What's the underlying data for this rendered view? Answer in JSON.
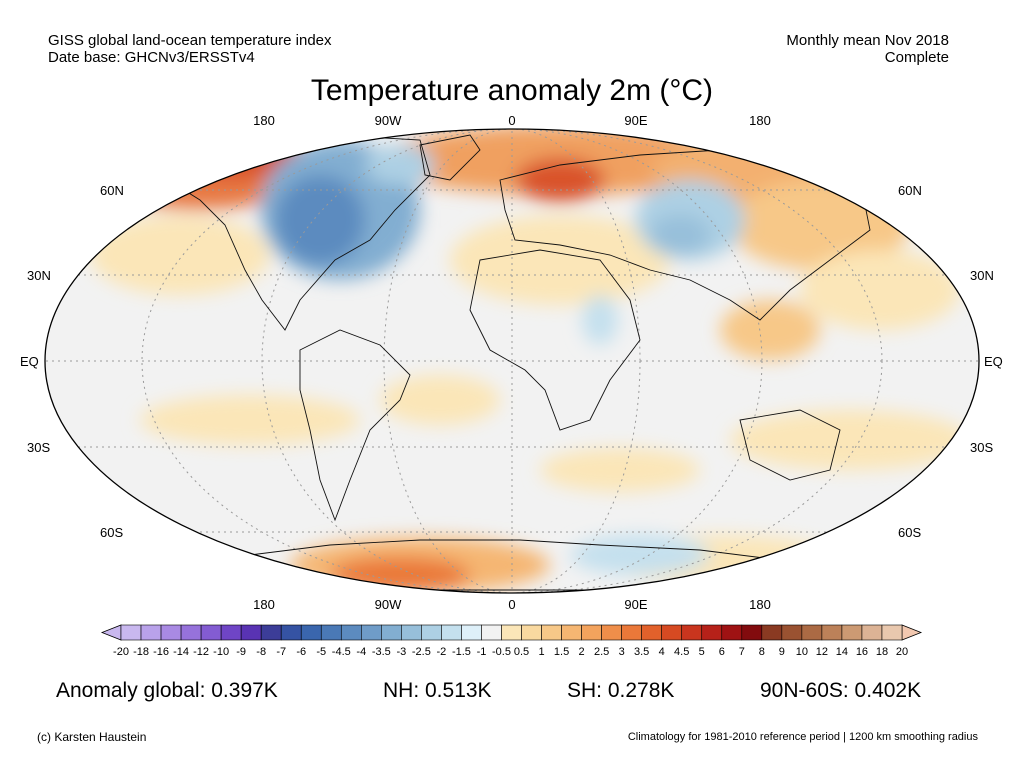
{
  "header": {
    "left_line1": "GISS global land-ocean temperature index",
    "left_line2": "Date base: GHCNv3/ERSSTv4",
    "right_line1": "Monthly mean Nov 2018",
    "right_line2": "Complete"
  },
  "title": "Temperature anomaly 2m (°C)",
  "lon_labels": [
    "180",
    "90W",
    "0",
    "90E",
    "180"
  ],
  "lat_labels": [
    "60N",
    "30N",
    "EQ",
    "30S",
    "60S"
  ],
  "colorbar": {
    "ticks": [
      "-20",
      "-18",
      "-16",
      "-14",
      "-12",
      "-10",
      "-9",
      "-8",
      "-7",
      "-6",
      "-5",
      "-4.5",
      "-4",
      "-3.5",
      "-3",
      "-2.5",
      "-2",
      "-1.5",
      "-1",
      "-0.5",
      "0.5",
      "1",
      "1.5",
      "2",
      "2.5",
      "3",
      "3.5",
      "4",
      "4.5",
      "5",
      "6",
      "7",
      "8",
      "9",
      "10",
      "12",
      "14",
      "16",
      "18",
      "20"
    ],
    "colors": [
      "#c9b8ef",
      "#b9a2ea",
      "#a98ae3",
      "#9672db",
      "#835cd2",
      "#6f45c6",
      "#5933b3",
      "#3c3d98",
      "#3553a3",
      "#3a66ad",
      "#4a79b6",
      "#5c8bbf",
      "#6f9cc8",
      "#82aed1",
      "#97bfda",
      "#add0e4",
      "#c4e0ee",
      "#def0f9",
      "#f2f2f2",
      "#fbe6b8",
      "#f9d9a0",
      "#f7c888",
      "#f5b672",
      "#f3a35d",
      "#ef8e4a",
      "#ea7839",
      "#e2612b",
      "#d64a22",
      "#c9351e",
      "#b62119",
      "#9f1213",
      "#820b0e",
      "#8a3a22",
      "#9a5231",
      "#ab6a44",
      "#bc8159",
      "#cc9a73",
      "#dcb395",
      "#e9c8ae"
    ],
    "end_low": "#c9b8ef",
    "end_high": "#f2c8b0"
  },
  "stats": {
    "global": "Anomaly global: 0.397K",
    "nh": "NH: 0.513K",
    "sh": "SH: 0.278K",
    "polar": "90N-60S: 0.402K"
  },
  "footer": {
    "left": "(c) Karsten Haustein",
    "right": "Climatology for 1981-2010 reference period | 1200 km smoothing radius"
  }
}
